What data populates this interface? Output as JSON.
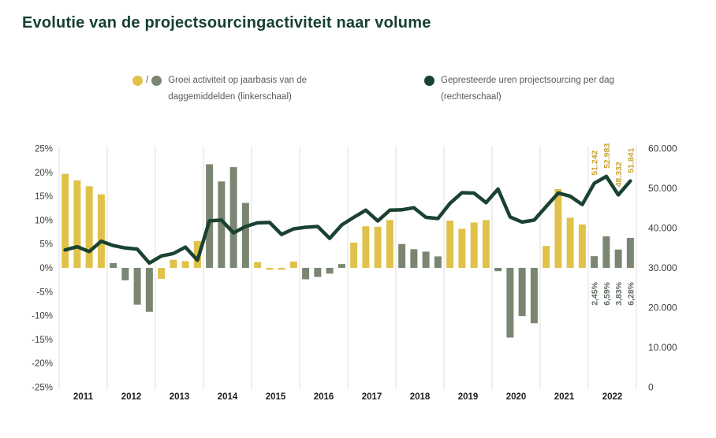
{
  "page": {
    "title": "Evolutie van de projectsourcingactiviteit naar volume"
  },
  "legend": {
    "growth": {
      "separator": "/",
      "label": "Groei activiteit op jaarbasis van de daggemiddelden (linkerschaal)"
    },
    "hours": {
      "label": "Gepresteerde uren projectsourcing per dag (rechterschaal)"
    }
  },
  "colors": {
    "bar_yellow": "#E0C24A",
    "bar_gray_green": "#7A8671",
    "line_dark_green": "#1A4230",
    "title_green": "#16402E",
    "axis_text": "#3D3D3D",
    "year_text": "#1E1E1E",
    "grid_line": "#E4E4E4",
    "legend_text": "#595959",
    "annotation_yellow": "#C9A42F",
    "annotation_gray": "#5F6A5E"
  },
  "chart_data": {
    "type": "bar+line",
    "title": "Evolutie van de projectsourcingactiviteit naar volume",
    "x_unit": "quarters (4 per year)",
    "grid": "vertical year separators only",
    "legend_position": "top",
    "bar_series_name": "Groei activiteit op jaarbasis van de daggemiddelden (linkerschaal), %",
    "line_series_name": "Gepresteerde uren projectsourcing per dag (rechterschaal)",
    "left_axis": {
      "min": -25,
      "max": 25,
      "tick_values": [
        25,
        20,
        15,
        10,
        5,
        0,
        -5,
        -10,
        -15,
        -20,
        -25
      ],
      "ticks": [
        "25%",
        "20%",
        "15%",
        "10%",
        "5%",
        "0%",
        "-5%",
        "-10%",
        "-15%",
        "-20%",
        "-25%"
      ]
    },
    "right_axis": {
      "min": 0,
      "max": 60000,
      "tick_values": [
        60000,
        50000,
        40000,
        30000,
        20000,
        10000,
        0
      ],
      "ticks": [
        "60.000",
        "50.000",
        "40.000",
        "30.000",
        "20.000",
        "10.000",
        "0"
      ]
    },
    "years": [
      {
        "label": "2011",
        "bar_color": "yellow",
        "bar_values": [
          19.7,
          18.3,
          17.1,
          15.4
        ],
        "line_values": [
          34500,
          35300,
          34100,
          36700
        ]
      },
      {
        "label": "2012",
        "bar_color": "gray_green",
        "bar_values": [
          1.0,
          -2.6,
          -7.7,
          -9.2
        ],
        "line_values": [
          35600,
          35000,
          34700,
          31200
        ]
      },
      {
        "label": "2013",
        "bar_color": "yellow",
        "bar_values": [
          -2.3,
          1.7,
          1.4,
          5.6
        ],
        "line_values": [
          33000,
          33600,
          35200,
          31900
        ]
      },
      {
        "label": "2014",
        "bar_color": "gray_green",
        "bar_values": [
          21.7,
          18.1,
          21.1,
          13.6
        ],
        "line_values": [
          41800,
          42000,
          38800,
          40400
        ]
      },
      {
        "label": "2015",
        "bar_color": "yellow",
        "bar_values": [
          1.2,
          -0.4,
          -0.4,
          1.3
        ],
        "line_values": [
          41300,
          41400,
          38400,
          39800
        ]
      },
      {
        "label": "2016",
        "bar_color": "gray_green",
        "bar_values": [
          -2.4,
          -1.9,
          -1.2,
          0.8
        ],
        "line_values": [
          40200,
          40400,
          37400,
          40800
        ]
      },
      {
        "label": "2017",
        "bar_color": "yellow",
        "bar_values": [
          5.3,
          8.7,
          8.6,
          10.0
        ],
        "line_values": [
          42700,
          44500,
          41800,
          44500
        ]
      },
      {
        "label": "2018",
        "bar_color": "gray_green",
        "bar_values": [
          5.0,
          3.9,
          3.4,
          2.4
        ],
        "line_values": [
          44600,
          45100,
          42700,
          42400
        ]
      },
      {
        "label": "2019",
        "bar_color": "yellow",
        "bar_values": [
          9.9,
          8.2,
          9.5,
          10.0
        ],
        "line_values": [
          46200,
          48900,
          48800,
          46400
        ]
      },
      {
        "label": "2020",
        "bar_color": "gray_green",
        "bar_values": [
          -0.7,
          -14.6,
          -10.1,
          -11.6
        ],
        "line_values": [
          49800,
          42800,
          41500,
          42000
        ]
      },
      {
        "label": "2021",
        "bar_color": "yellow",
        "bar_values": [
          4.6,
          16.5,
          10.5,
          9.1
        ],
        "line_values": [
          45400,
          48800,
          48000,
          45900
        ]
      },
      {
        "label": "2022",
        "bar_color": "gray_green",
        "bar_values": [
          2.45,
          6.59,
          3.83,
          6.28
        ],
        "line_values": [
          51242,
          52983,
          48332,
          51841
        ]
      }
    ],
    "annotations": {
      "line_labels_2022": [
        "51.242",
        "52.983",
        "48.332",
        "51.841"
      ],
      "bar_labels_2022": [
        "2,45%",
        "6,59%",
        "3,83%",
        "6,28%"
      ]
    }
  }
}
